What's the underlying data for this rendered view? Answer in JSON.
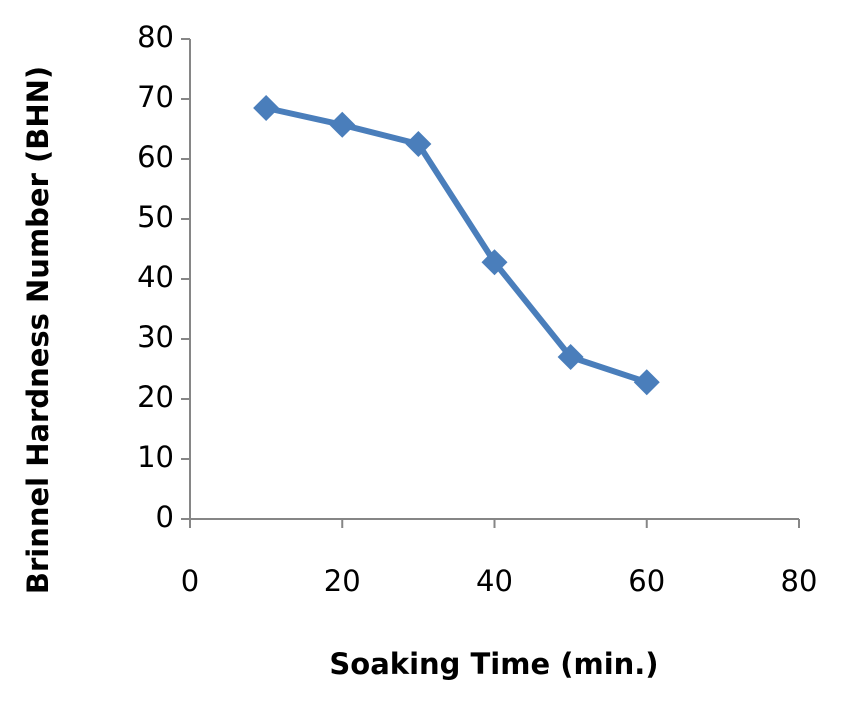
{
  "chart_data": {
    "type": "line",
    "x_label": "Soaking Time (min.)",
    "y_label": "Brinnel Hardness Number (BHN)",
    "x": [
      10,
      20,
      30,
      40,
      50,
      60
    ],
    "series": [
      {
        "name": "BHN",
        "color": "#4a7ebb",
        "values": [
          68.5,
          65.7,
          62.5,
          42.8,
          27,
          22.8
        ]
      }
    ],
    "xlim": [
      0,
      80
    ],
    "xticks": [
      0,
      20,
      40,
      60,
      80
    ],
    "ylim": [
      0,
      80
    ],
    "yticks": [
      0,
      10,
      20,
      30,
      40,
      50,
      60,
      70,
      80
    ],
    "marker": "diamond",
    "grid": false
  }
}
